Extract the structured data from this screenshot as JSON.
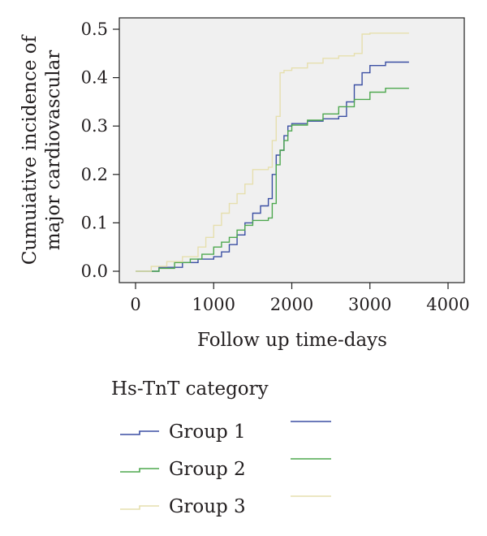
{
  "chart_data": {
    "type": "line",
    "style": "step",
    "title": "",
    "xlabel": "Follow up time-days",
    "ylabel_lines": [
      "Cumuiative incidence of",
      "major cardiovascular"
    ],
    "xlim": [
      0,
      4000
    ],
    "ylim": [
      0,
      0.5
    ],
    "x_ticks": [
      0,
      1000,
      2000,
      3000,
      4000
    ],
    "x_tick_labels": [
      "0",
      "1000",
      "2000",
      "3000",
      "4000"
    ],
    "y_ticks": [
      0,
      0.1,
      0.2,
      0.3,
      0.4,
      0.5
    ],
    "y_tick_labels": [
      "0.0",
      "0.1",
      "0.2",
      "0.3",
      "0.4",
      "0.5"
    ],
    "grid": false,
    "plot_background": "#f0f0f0",
    "legend": {
      "title": "Hs-TnT category",
      "position": "bottom"
    },
    "series": [
      {
        "name": "Group 1",
        "color": "#3b4fa3",
        "points": [
          [
            0,
            0
          ],
          [
            300,
            0
          ],
          [
            300,
            0.008
          ],
          [
            600,
            0.018
          ],
          [
            800,
            0.025
          ],
          [
            1000,
            0.03
          ],
          [
            1100,
            0.04
          ],
          [
            1200,
            0.055
          ],
          [
            1300,
            0.075
          ],
          [
            1400,
            0.1
          ],
          [
            1500,
            0.12
          ],
          [
            1600,
            0.135
          ],
          [
            1700,
            0.15
          ],
          [
            1750,
            0.2
          ],
          [
            1800,
            0.24
          ],
          [
            1850,
            0.25
          ],
          [
            1900,
            0.28
          ],
          [
            1950,
            0.3
          ],
          [
            2000,
            0.305
          ],
          [
            2200,
            0.31
          ],
          [
            2400,
            0.315
          ],
          [
            2600,
            0.32
          ],
          [
            2700,
            0.35
          ],
          [
            2800,
            0.385
          ],
          [
            2900,
            0.41
          ],
          [
            3000,
            0.425
          ],
          [
            3200,
            0.432
          ],
          [
            3500,
            0.432
          ]
        ]
      },
      {
        "name": "Group 2",
        "color": "#4ea84f",
        "points": [
          [
            0,
            0
          ],
          [
            300,
            0
          ],
          [
            300,
            0.006
          ],
          [
            500,
            0.018
          ],
          [
            700,
            0.025
          ],
          [
            850,
            0.035
          ],
          [
            1000,
            0.05
          ],
          [
            1100,
            0.06
          ],
          [
            1200,
            0.07
          ],
          [
            1300,
            0.085
          ],
          [
            1400,
            0.095
          ],
          [
            1500,
            0.105
          ],
          [
            1700,
            0.11
          ],
          [
            1750,
            0.14
          ],
          [
            1800,
            0.22
          ],
          [
            1850,
            0.25
          ],
          [
            1900,
            0.27
          ],
          [
            1950,
            0.29
          ],
          [
            2000,
            0.302
          ],
          [
            2200,
            0.312
          ],
          [
            2400,
            0.325
          ],
          [
            2600,
            0.34
          ],
          [
            2800,
            0.355
          ],
          [
            3000,
            0.37
          ],
          [
            3200,
            0.378
          ],
          [
            3500,
            0.378
          ]
        ]
      },
      {
        "name": "Group 3",
        "color": "#e6dfae",
        "points": [
          [
            0,
            0
          ],
          [
            200,
            0
          ],
          [
            200,
            0.01
          ],
          [
            400,
            0.02
          ],
          [
            600,
            0.03
          ],
          [
            800,
            0.05
          ],
          [
            900,
            0.07
          ],
          [
            1000,
            0.095
          ],
          [
            1100,
            0.12
          ],
          [
            1200,
            0.14
          ],
          [
            1300,
            0.16
          ],
          [
            1400,
            0.18
          ],
          [
            1500,
            0.21
          ],
          [
            1700,
            0.215
          ],
          [
            1750,
            0.27
          ],
          [
            1800,
            0.32
          ],
          [
            1850,
            0.41
          ],
          [
            1900,
            0.415
          ],
          [
            2000,
            0.42
          ],
          [
            2200,
            0.43
          ],
          [
            2400,
            0.44
          ],
          [
            2600,
            0.445
          ],
          [
            2800,
            0.45
          ],
          [
            2900,
            0.49
          ],
          [
            3000,
            0.492
          ],
          [
            3500,
            0.492
          ]
        ]
      }
    ]
  }
}
